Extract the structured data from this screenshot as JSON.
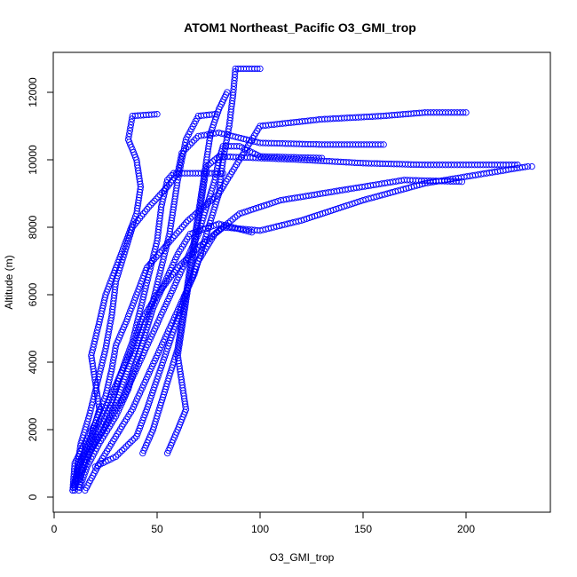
{
  "chart_data": {
    "type": "scatter",
    "title": "ATOM1 Northeast_Pacific O3_GMI_trop",
    "xlabel": "O3_GMI_trop",
    "ylabel": "Altitude (m)",
    "xlim": [
      0,
      240
    ],
    "ylim": [
      0,
      12700
    ],
    "x_ticks": [
      0,
      50,
      100,
      150,
      200
    ],
    "y_ticks": [
      0,
      2000,
      4000,
      6000,
      8000,
      10000,
      12000
    ],
    "x_tick_labels": [
      "0",
      "50",
      "100",
      "150",
      "200"
    ],
    "y_tick_labels": [
      "0",
      "2000",
      "4000",
      "6000",
      "8000",
      "10000",
      "12000"
    ],
    "marker": "open-circle",
    "color": "#0000ff",
    "grid": false,
    "legend": "none",
    "profiles": [
      [
        [
          9,
          200
        ],
        [
          10,
          1000
        ],
        [
          14,
          1500
        ],
        [
          20,
          2200
        ],
        [
          25,
          3000
        ],
        [
          28,
          3800
        ],
        [
          30,
          4500
        ],
        [
          35,
          5200
        ],
        [
          40,
          6000
        ],
        [
          45,
          6800
        ],
        [
          55,
          7500
        ],
        [
          65,
          8200
        ],
        [
          80,
          9000
        ],
        [
          90,
          10000
        ],
        [
          100,
          11000
        ],
        [
          130,
          11200
        ],
        [
          160,
          11300
        ],
        [
          180,
          11400
        ],
        [
          200,
          11400
        ]
      ],
      [
        [
          12,
          300
        ],
        [
          15,
          1200
        ],
        [
          22,
          2000
        ],
        [
          28,
          2800
        ],
        [
          32,
          3600
        ],
        [
          38,
          4400
        ],
        [
          42,
          5200
        ],
        [
          50,
          6000
        ],
        [
          60,
          6800
        ],
        [
          70,
          7400
        ],
        [
          82,
          8000
        ],
        [
          100,
          7900
        ],
        [
          120,
          8200
        ],
        [
          150,
          8800
        ],
        [
          180,
          9300
        ],
        [
          210,
          9600
        ],
        [
          230,
          9800
        ],
        [
          232,
          9800
        ]
      ],
      [
        [
          20,
          900
        ],
        [
          30,
          1200
        ],
        [
          40,
          1800
        ],
        [
          45,
          2600
        ],
        [
          50,
          3500
        ],
        [
          55,
          4400
        ],
        [
          60,
          5300
        ],
        [
          65,
          6200
        ],
        [
          70,
          7000
        ],
        [
          78,
          7800
        ],
        [
          90,
          8400
        ],
        [
          110,
          8800
        ],
        [
          140,
          9100
        ],
        [
          170,
          9400
        ],
        [
          198,
          9350
        ]
      ],
      [
        [
          9,
          200
        ],
        [
          12,
          1000
        ],
        [
          18,
          1800
        ],
        [
          22,
          2600
        ],
        [
          20,
          3400
        ],
        [
          18,
          4200
        ],
        [
          22,
          5200
        ],
        [
          25,
          6000
        ],
        [
          30,
          6800
        ],
        [
          35,
          7600
        ],
        [
          40,
          8400
        ],
        [
          42,
          9200
        ],
        [
          40,
          10000
        ],
        [
          36,
          10600
        ],
        [
          38,
          11300
        ],
        [
          50,
          11350
        ]
      ],
      [
        [
          10,
          300
        ],
        [
          14,
          1200
        ],
        [
          20,
          2000
        ],
        [
          26,
          2800
        ],
        [
          32,
          3600
        ],
        [
          38,
          4600
        ],
        [
          42,
          5600
        ],
        [
          46,
          6600
        ],
        [
          50,
          7600
        ],
        [
          52,
          8600
        ],
        [
          55,
          9400
        ],
        [
          58,
          9600
        ],
        [
          70,
          9600
        ],
        [
          82,
          9600
        ]
      ],
      [
        [
          10,
          400
        ],
        [
          16,
          1200
        ],
        [
          24,
          2000
        ],
        [
          30,
          2800
        ],
        [
          36,
          3800
        ],
        [
          42,
          4800
        ],
        [
          48,
          5800
        ],
        [
          52,
          6800
        ],
        [
          56,
          7800
        ],
        [
          58,
          8600
        ],
        [
          60,
          9400
        ],
        [
          62,
          10000
        ],
        [
          64,
          10600
        ],
        [
          70,
          11300
        ],
        [
          78,
          11350
        ]
      ],
      [
        [
          12,
          500
        ],
        [
          18,
          1400
        ],
        [
          26,
          2200
        ],
        [
          34,
          3000
        ],
        [
          40,
          3800
        ],
        [
          46,
          4600
        ],
        [
          52,
          5400
        ],
        [
          58,
          6200
        ],
        [
          64,
          7000
        ],
        [
          70,
          7800
        ],
        [
          74,
          8600
        ],
        [
          78,
          9400
        ],
        [
          80,
          10000
        ],
        [
          82,
          10400
        ],
        [
          90,
          10400
        ],
        [
          100,
          10100
        ],
        [
          130,
          10050
        ]
      ],
      [
        [
          15,
          200
        ],
        [
          22,
          1000
        ],
        [
          30,
          1800
        ],
        [
          38,
          2600
        ],
        [
          44,
          3400
        ],
        [
          50,
          4200
        ],
        [
          56,
          5000
        ],
        [
          62,
          5800
        ],
        [
          68,
          6600
        ],
        [
          72,
          7400
        ],
        [
          76,
          8200
        ],
        [
          80,
          9000
        ],
        [
          82,
          10000
        ],
        [
          85,
          11000
        ],
        [
          87,
          12000
        ],
        [
          88,
          12700
        ],
        [
          100,
          12700
        ]
      ],
      [
        [
          43,
          1300
        ],
        [
          48,
          2000
        ],
        [
          52,
          2800
        ],
        [
          56,
          3600
        ],
        [
          60,
          4400
        ],
        [
          62,
          5200
        ],
        [
          64,
          6000
        ],
        [
          66,
          6800
        ],
        [
          68,
          7600
        ],
        [
          70,
          8400
        ],
        [
          72,
          9200
        ],
        [
          74,
          10000
        ],
        [
          76,
          10800
        ],
        [
          80,
          11500
        ],
        [
          84,
          12000
        ]
      ],
      [
        [
          55,
          1300
        ],
        [
          60,
          2000
        ],
        [
          64,
          2600
        ],
        [
          62,
          3400
        ],
        [
          60,
          4200
        ],
        [
          62,
          5000
        ],
        [
          64,
          5800
        ],
        [
          66,
          6600
        ],
        [
          68,
          7400
        ],
        [
          70,
          8200
        ],
        [
          72,
          9000
        ],
        [
          74,
          9800
        ],
        [
          80,
          10100
        ],
        [
          120,
          10000
        ],
        [
          150,
          9900
        ],
        [
          180,
          9850
        ],
        [
          200,
          9850
        ],
        [
          225,
          9850
        ]
      ],
      [
        [
          10,
          200
        ],
        [
          11,
          800
        ],
        [
          13,
          1600
        ],
        [
          17,
          2400
        ],
        [
          21,
          3400
        ],
        [
          25,
          4400
        ],
        [
          28,
          5400
        ],
        [
          30,
          6400
        ],
        [
          34,
          7200
        ],
        [
          38,
          8000
        ],
        [
          46,
          8600
        ],
        [
          55,
          9200
        ],
        [
          60,
          9600
        ],
        [
          62,
          10200
        ],
        [
          70,
          10700
        ],
        [
          80,
          10800
        ],
        [
          100,
          10500
        ],
        [
          130,
          10450
        ],
        [
          160,
          10450
        ]
      ],
      [
        [
          12,
          200
        ],
        [
          16,
          900
        ],
        [
          22,
          1600
        ],
        [
          30,
          2400
        ],
        [
          36,
          3200
        ],
        [
          40,
          4000
        ],
        [
          44,
          4800
        ],
        [
          48,
          5600
        ],
        [
          54,
          6400
        ],
        [
          60,
          7200
        ],
        [
          66,
          7800
        ],
        [
          80,
          8100
        ],
        [
          96,
          7850
        ]
      ]
    ]
  }
}
